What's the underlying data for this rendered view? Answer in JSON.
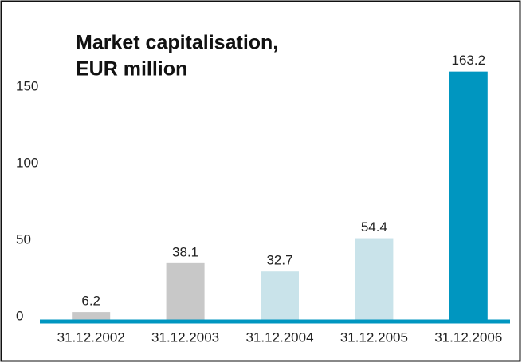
{
  "chart_data": {
    "type": "bar",
    "title": [
      "Market capitalisation,",
      "EUR million"
    ],
    "categories": [
      "31.12.2002",
      "31.12.2003",
      "31.12.2004",
      "31.12.2005",
      "31.12.2006"
    ],
    "values": [
      6.2,
      38.1,
      32.7,
      54.4,
      163.2
    ],
    "colors": [
      "#c8c8c8",
      "#c8c8c8",
      "#c9e3ea",
      "#c9e3ea",
      "#0096c0"
    ],
    "ylim": [
      0,
      200
    ],
    "yticks": [
      0,
      50,
      100,
      150
    ],
    "grid": false
  }
}
